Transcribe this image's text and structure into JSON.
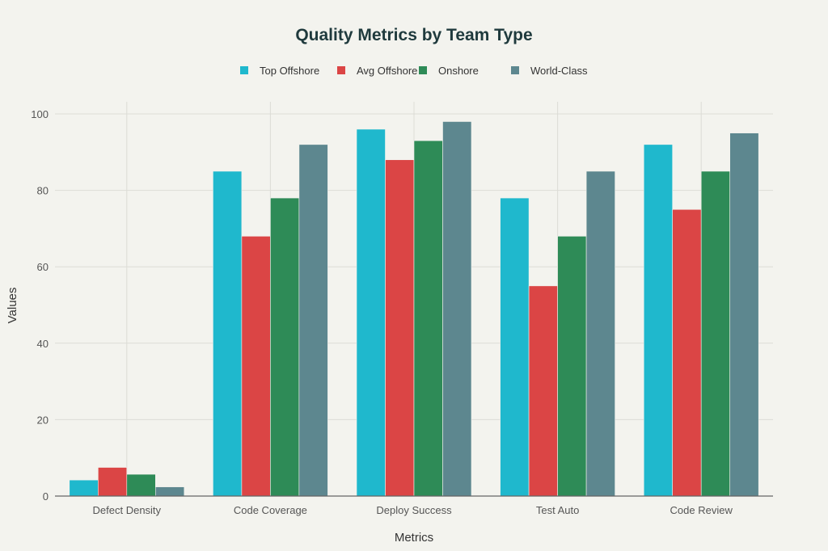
{
  "chart_data": {
    "type": "bar",
    "title": "Quality Metrics by Team Type",
    "xlabel": "Metrics",
    "ylabel": "Values",
    "ylim": [
      0,
      100
    ],
    "yticks": [
      0,
      20,
      40,
      60,
      80,
      100
    ],
    "grid": true,
    "legend_placement": "top-center",
    "categories": [
      "Defect Density",
      "Code Coverage",
      "Deploy Success",
      "Test Auto",
      "Code Review"
    ],
    "series": [
      {
        "name": "Top Offshore",
        "color": "#1fb8cd",
        "values": [
          4.2,
          85,
          96,
          78,
          92
        ]
      },
      {
        "name": "Avg Offshore",
        "color": "#db4545",
        "values": [
          7.5,
          68,
          88,
          55,
          75
        ]
      },
      {
        "name": "Onshore",
        "color": "#2e8b57",
        "values": [
          5.7,
          78,
          93,
          68,
          85
        ]
      },
      {
        "name": "World-Class",
        "color": "#5d878f",
        "values": [
          2.4,
          92,
          98,
          85,
          95
        ]
      }
    ]
  }
}
